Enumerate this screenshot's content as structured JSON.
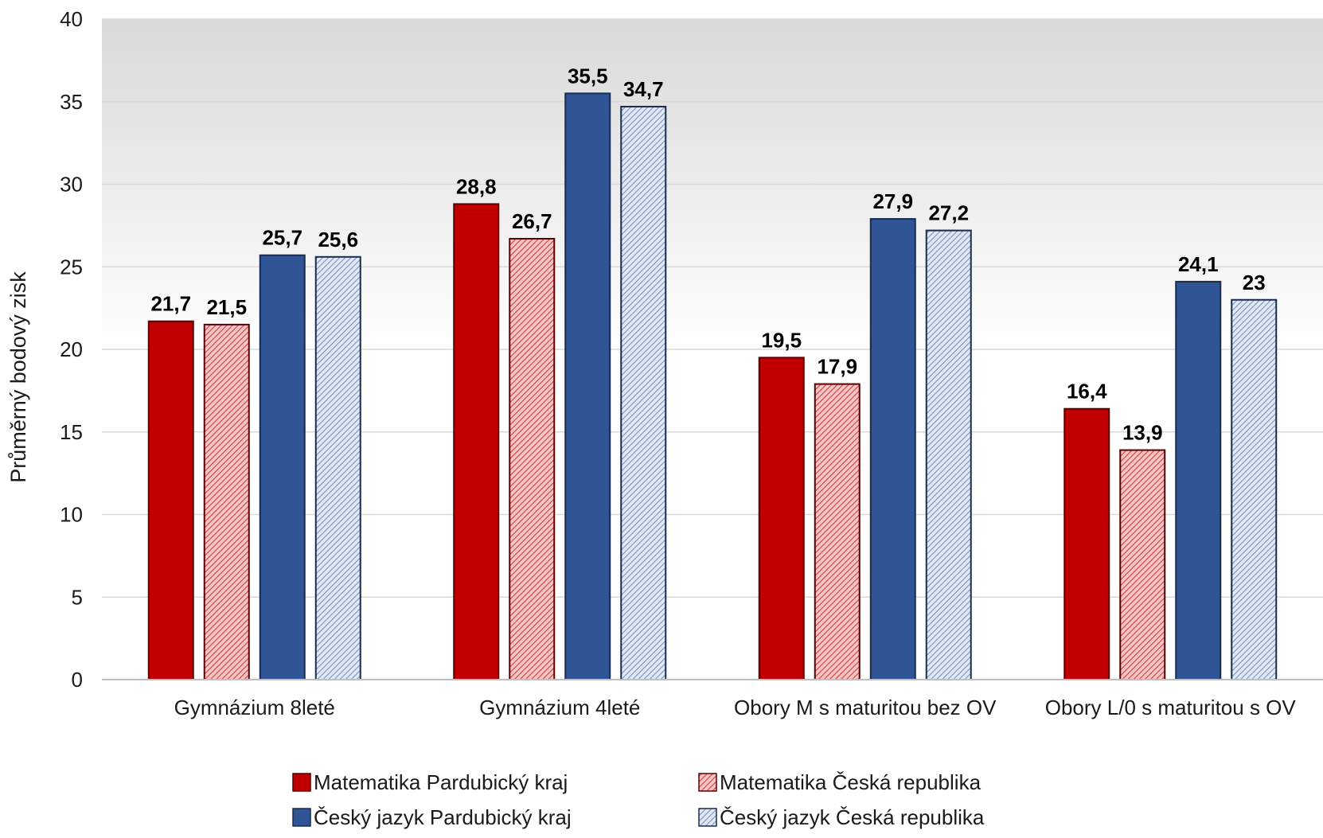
{
  "chart_data": {
    "type": "bar",
    "title": "",
    "xlabel": "",
    "ylabel": "Průměrný bodový zisk",
    "ylim": [
      0,
      40
    ],
    "yticks": [
      0,
      5,
      10,
      15,
      20,
      25,
      30,
      35,
      40
    ],
    "grid": true,
    "legend_position": "bottom",
    "categories": [
      "Gymnázium 8leté",
      "Gymnázium 4leté",
      "Obory M s maturitou bez OV",
      "Obory L/0 s maturitou s OV"
    ],
    "series": [
      {
        "name": "Matematika Pardubický kraj",
        "values": [
          21.7,
          28.8,
          19.5,
          16.4
        ],
        "labels": [
          "21,7",
          "28,8",
          "19,5",
          "16,4"
        ],
        "color": "#c00000",
        "pattern": "solid"
      },
      {
        "name": "Matematika Česká republika",
        "values": [
          21.5,
          26.7,
          17.9,
          13.9
        ],
        "labels": [
          "21,5",
          "26,7",
          "17,9",
          "13,9"
        ],
        "color": "#e06666",
        "pattern": "hatched"
      },
      {
        "name": "Český jazyk Pardubický kraj",
        "values": [
          25.7,
          35.5,
          27.9,
          24.1
        ],
        "labels": [
          "25,7",
          "35,5",
          "27,9",
          "24,1"
        ],
        "color": "#2f5597",
        "pattern": "solid"
      },
      {
        "name": "Český jazyk Česká republika",
        "values": [
          25.6,
          34.7,
          27.2,
          23
        ],
        "labels": [
          "25,6",
          "34,7",
          "27,2",
          "23"
        ],
        "color": "#8faadc",
        "pattern": "hatched"
      }
    ]
  }
}
